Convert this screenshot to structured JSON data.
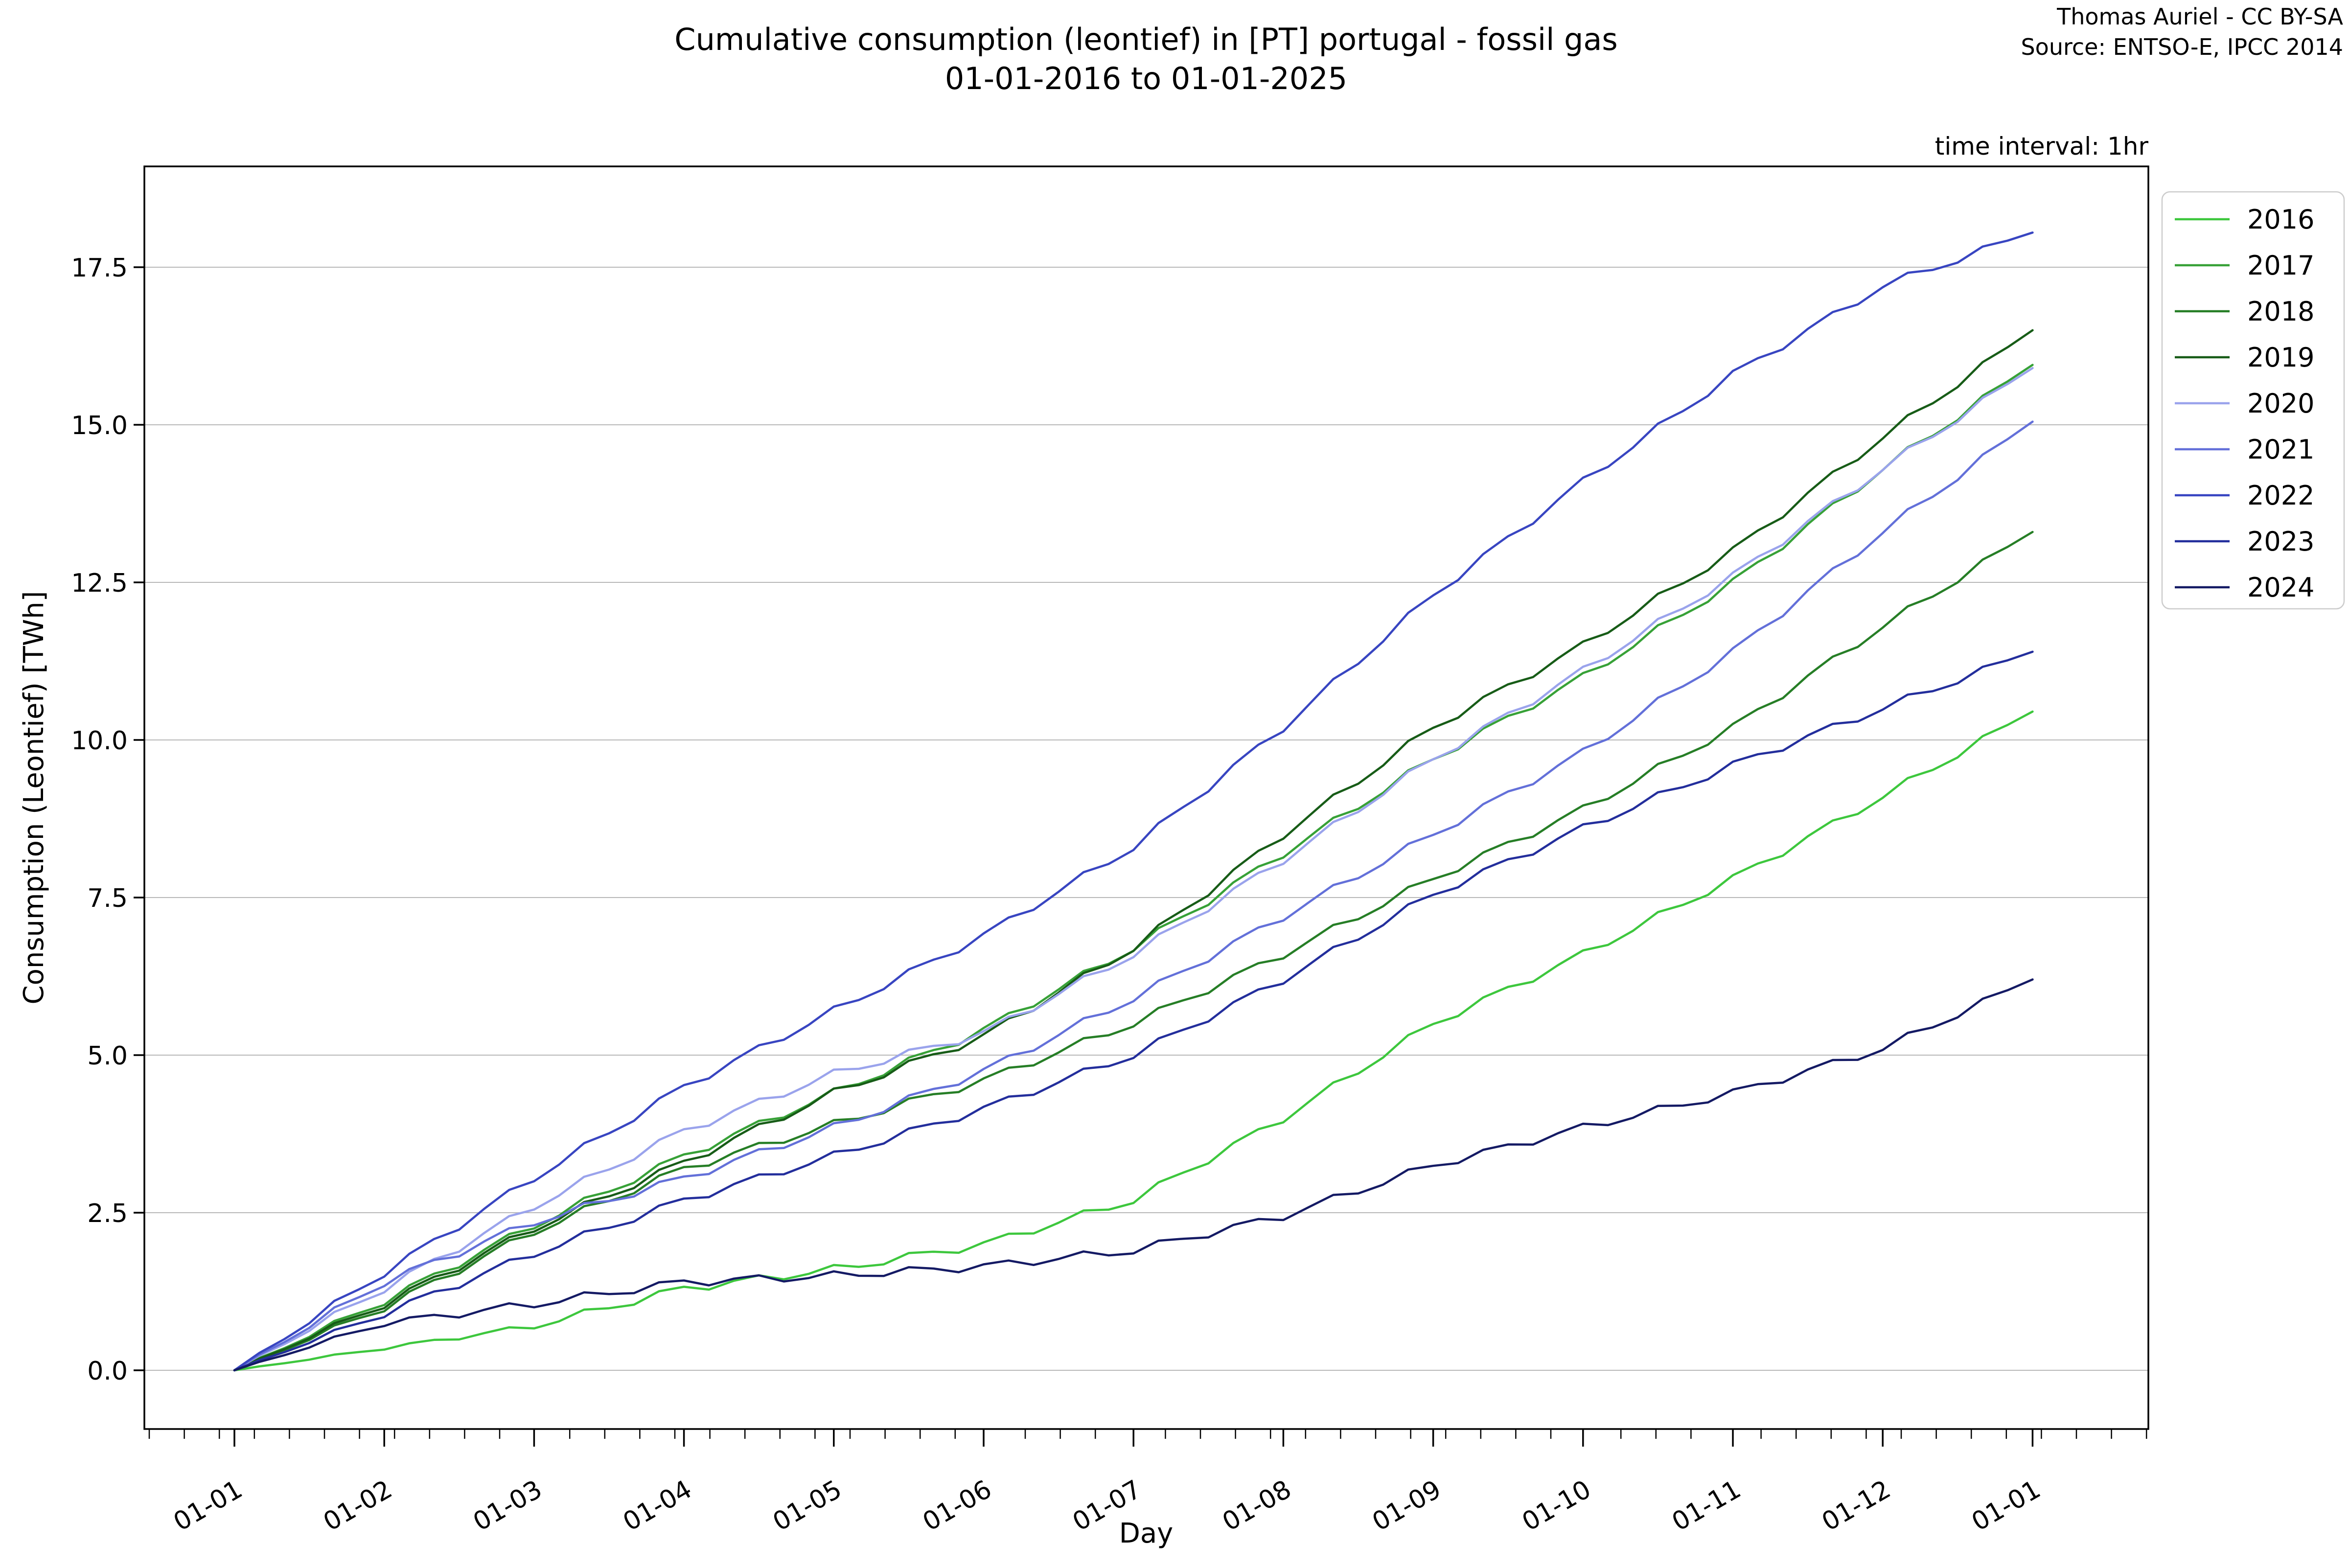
{
  "header": {
    "title_line1": "Cumulative consumption (leontief) in [PT] portugal - fossil gas",
    "title_line2": "01-01-2016 to 01-01-2025",
    "credit_line1": "Thomas Auriel - CC BY-SA",
    "credit_line2": "Source: ENTSO-E, IPCC 2014",
    "time_interval_note": "time interval: 1hr"
  },
  "chart_data": {
    "type": "line",
    "title": "Cumulative consumption (leontief) in [PT] portugal - fossil gas 01-01-2016 to 01-01-2025",
    "xlabel": "Day",
    "ylabel": "Consumption (Leontief) [TWh]",
    "x_tick_labels": [
      "01-01",
      "01-02",
      "01-03",
      "01-04",
      "01-05",
      "01-06",
      "01-07",
      "01-08",
      "01-09",
      "01-10",
      "01-11",
      "01-12",
      "01-01"
    ],
    "y_ticks": [
      0,
      2.5,
      5,
      7.5,
      10,
      12.5,
      15,
      17.5
    ],
    "y_tick_labels": [
      "0.0",
      "2.5",
      "5.0",
      "7.5",
      "10.0",
      "12.5",
      "15.0",
      "17.5"
    ],
    "ylim": [
      -0.9,
      19.1
    ],
    "grid": "horizontal-only",
    "legend_position": "outside-upper-right",
    "colors": {
      "grid": "#b8b8b8",
      "spine": "#000000",
      "legend_border": "#cccccc"
    },
    "series": [
      {
        "name": "2016",
        "color": "#3dc73d",
        "values": [
          0,
          0.35,
          0.7,
          1.3,
          1.6,
          2.0,
          2.7,
          4.0,
          5.5,
          6.6,
          7.8,
          9.1,
          10.45
        ]
      },
      {
        "name": "2017",
        "color": "#37a137",
        "values": [
          0,
          1.1,
          2.3,
          3.4,
          4.4,
          5.4,
          6.7,
          8.2,
          9.7,
          11.0,
          12.5,
          14.3,
          15.95
        ]
      },
      {
        "name": "2018",
        "color": "#267e26",
        "values": [
          0,
          1.0,
          2.2,
          3.2,
          3.9,
          4.6,
          5.5,
          6.6,
          7.8,
          8.9,
          10.2,
          11.8,
          13.3
        ]
      },
      {
        "name": "2019",
        "color": "#175c17",
        "values": [
          0,
          1.05,
          2.25,
          3.3,
          4.4,
          5.3,
          6.7,
          8.5,
          10.2,
          11.5,
          13.0,
          14.8,
          16.5
        ]
      },
      {
        "name": "2020",
        "color": "#9aa3ec",
        "values": [
          0,
          1.3,
          2.6,
          3.8,
          4.7,
          5.35,
          6.6,
          8.1,
          9.7,
          11.1,
          12.6,
          14.3,
          15.9
        ]
      },
      {
        "name": "2021",
        "color": "#6370d9",
        "values": [
          0,
          1.4,
          2.35,
          3.05,
          3.85,
          4.75,
          5.9,
          7.2,
          8.5,
          9.8,
          11.4,
          13.3,
          15.05
        ]
      },
      {
        "name": "2022",
        "color": "#3845c1",
        "values": [
          0,
          1.55,
          3.05,
          4.5,
          5.7,
          6.9,
          8.3,
          10.2,
          12.3,
          14.1,
          15.8,
          17.2,
          18.05
        ]
      },
      {
        "name": "2023",
        "color": "#232e9c",
        "values": [
          0,
          0.9,
          1.85,
          2.7,
          3.4,
          4.15,
          5.0,
          6.2,
          7.55,
          8.6,
          9.6,
          10.5,
          11.4
        ]
      },
      {
        "name": "2024",
        "color": "#141a64",
        "values": [
          0,
          0.75,
          1.05,
          1.4,
          1.5,
          1.65,
          1.9,
          2.45,
          3.25,
          3.85,
          4.4,
          5.1,
          6.2
        ]
      }
    ]
  }
}
